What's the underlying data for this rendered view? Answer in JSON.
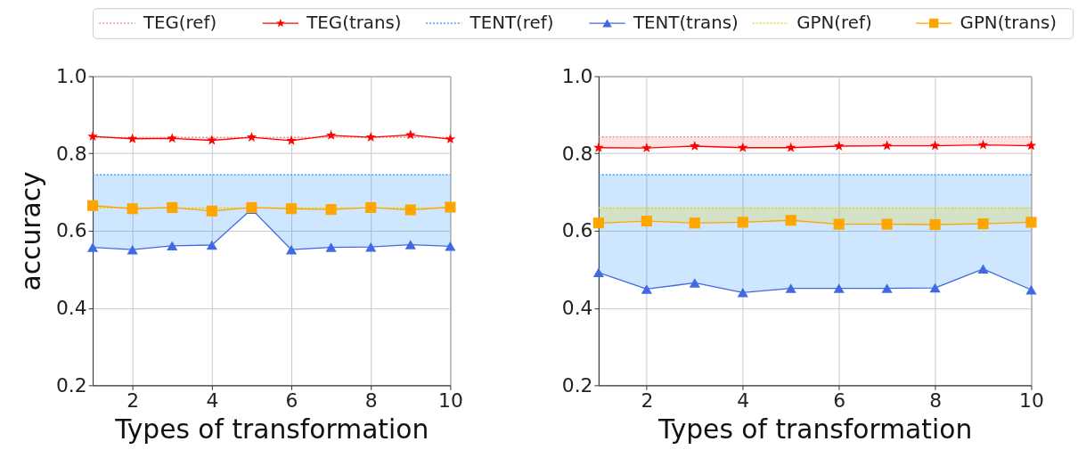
{
  "chart_data": [
    {
      "type": "line",
      "xlabel": "Types of transformation",
      "ylabel": "accuracy",
      "x": [
        1,
        2,
        3,
        4,
        5,
        6,
        7,
        8,
        9,
        10
      ],
      "xlim": [
        1,
        10
      ],
      "xticks": [
        2,
        4,
        6,
        8,
        10
      ],
      "ylim": [
        0.2,
        1.0
      ],
      "yticks": [
        0.2,
        0.4,
        0.6,
        0.8,
        {
          "value": 1.0,
          "label": "1.0"
        }
      ],
      "grid": true,
      "legend": "top",
      "series": [
        {
          "name": "TEG(ref)",
          "color": "#f08080",
          "line_style": "dotted",
          "marker": "none",
          "values": [
            0.842,
            0.842,
            0.842,
            0.842,
            0.842,
            0.842,
            0.842,
            0.842,
            0.842,
            0.842
          ],
          "lower": [
            0.844,
            0.838,
            0.839,
            0.834,
            0.842,
            0.833,
            0.847,
            0.842,
            0.848,
            0.837
          ],
          "upper": [
            0.842,
            0.842,
            0.842,
            0.842,
            0.842,
            0.842,
            0.842,
            0.842,
            0.842,
            0.842
          ]
        },
        {
          "name": "TEG(trans)",
          "color": "#ff0000",
          "line_style": "solid",
          "marker": "star",
          "values": [
            0.844,
            0.838,
            0.839,
            0.834,
            0.842,
            0.833,
            0.847,
            0.842,
            0.848,
            0.837
          ]
        },
        {
          "name": "TENT(ref)",
          "color": "#1e90ff",
          "line_style": "dotted",
          "marker": "none",
          "values": [
            0.745,
            0.745,
            0.745,
            0.745,
            0.745,
            0.745,
            0.745,
            0.745,
            0.745,
            0.745
          ],
          "lower": [
            0.557,
            0.551,
            0.561,
            0.563,
            0.656,
            0.551,
            0.557,
            0.558,
            0.564,
            0.56
          ],
          "upper": [
            0.745,
            0.745,
            0.745,
            0.745,
            0.745,
            0.745,
            0.745,
            0.745,
            0.745,
            0.745
          ]
        },
        {
          "name": "TENT(trans)",
          "color": "#4169e1",
          "line_style": "solid",
          "marker": "triangle",
          "values": [
            0.557,
            0.551,
            0.561,
            0.563,
            0.656,
            0.551,
            0.557,
            0.558,
            0.564,
            0.56
          ]
        },
        {
          "name": "GPN(ref)",
          "color": "#e6d200",
          "line_style": "dotted",
          "marker": "none",
          "values": [
            0.659,
            0.659,
            0.659,
            0.659,
            0.659,
            0.659,
            0.659,
            0.659,
            0.659,
            0.659
          ],
          "lower": [
            0.665,
            0.657,
            0.66,
            0.651,
            0.66,
            0.657,
            0.655,
            0.66,
            0.654,
            0.661
          ],
          "upper": [
            0.659,
            0.659,
            0.659,
            0.659,
            0.659,
            0.659,
            0.659,
            0.659,
            0.659,
            0.659
          ]
        },
        {
          "name": "GPN(trans)",
          "color": "#ffa500",
          "line_style": "solid",
          "marker": "square",
          "values": [
            0.665,
            0.657,
            0.66,
            0.651,
            0.66,
            0.657,
            0.655,
            0.66,
            0.654,
            0.661
          ]
        }
      ]
    },
    {
      "type": "line",
      "xlabel": "Types of transformation",
      "x": [
        1,
        2,
        3,
        4,
        5,
        6,
        7,
        8,
        9,
        10
      ],
      "xlim": [
        1,
        10
      ],
      "xticks": [
        2,
        4,
        6,
        8,
        10
      ],
      "ylim": [
        0.2,
        1.0
      ],
      "yticks": [
        0.2,
        0.4,
        0.6,
        0.8,
        {
          "value": 1.0,
          "label": "1.0"
        }
      ],
      "grid": true,
      "legend": "top",
      "series": [
        {
          "name": "TEG(ref)",
          "color": "#f08080",
          "line_style": "dotted",
          "marker": "none",
          "values": [
            0.843,
            0.843,
            0.843,
            0.843,
            0.843,
            0.843,
            0.843,
            0.843,
            0.843,
            0.843
          ],
          "lower": [
            0.815,
            0.814,
            0.819,
            0.815,
            0.815,
            0.819,
            0.82,
            0.82,
            0.822,
            0.82
          ],
          "upper": [
            0.843,
            0.843,
            0.843,
            0.843,
            0.843,
            0.843,
            0.843,
            0.843,
            0.843,
            0.843
          ]
        },
        {
          "name": "TEG(trans)",
          "color": "#ff0000",
          "line_style": "solid",
          "marker": "star",
          "values": [
            0.815,
            0.814,
            0.819,
            0.815,
            0.815,
            0.819,
            0.82,
            0.82,
            0.822,
            0.82
          ]
        },
        {
          "name": "TENT(ref)",
          "color": "#1e90ff",
          "line_style": "dotted",
          "marker": "none",
          "values": [
            0.745,
            0.745,
            0.745,
            0.745,
            0.745,
            0.745,
            0.745,
            0.745,
            0.745,
            0.745
          ],
          "lower": [
            0.492,
            0.449,
            0.465,
            0.44,
            0.451,
            0.451,
            0.451,
            0.452,
            0.501,
            0.447
          ],
          "upper": [
            0.745,
            0.745,
            0.745,
            0.745,
            0.745,
            0.745,
            0.745,
            0.745,
            0.745,
            0.745
          ]
        },
        {
          "name": "TENT(trans)",
          "color": "#4169e1",
          "line_style": "solid",
          "marker": "triangle",
          "values": [
            0.492,
            0.449,
            0.465,
            0.44,
            0.451,
            0.451,
            0.451,
            0.452,
            0.501,
            0.447
          ]
        },
        {
          "name": "GPN(ref)",
          "color": "#e6d200",
          "line_style": "dotted",
          "marker": "none",
          "values": [
            0.659,
            0.659,
            0.659,
            0.659,
            0.659,
            0.659,
            0.659,
            0.659,
            0.659,
            0.659
          ],
          "lower": [
            0.62,
            0.625,
            0.62,
            0.622,
            0.627,
            0.617,
            0.617,
            0.616,
            0.618,
            0.622
          ],
          "upper": [
            0.659,
            0.659,
            0.659,
            0.659,
            0.659,
            0.659,
            0.659,
            0.659,
            0.659,
            0.659
          ]
        },
        {
          "name": "GPN(trans)",
          "color": "#ffa500",
          "line_style": "solid",
          "marker": "square",
          "values": [
            0.62,
            0.625,
            0.62,
            0.622,
            0.627,
            0.617,
            0.617,
            0.616,
            0.618,
            0.622
          ]
        }
      ]
    }
  ]
}
